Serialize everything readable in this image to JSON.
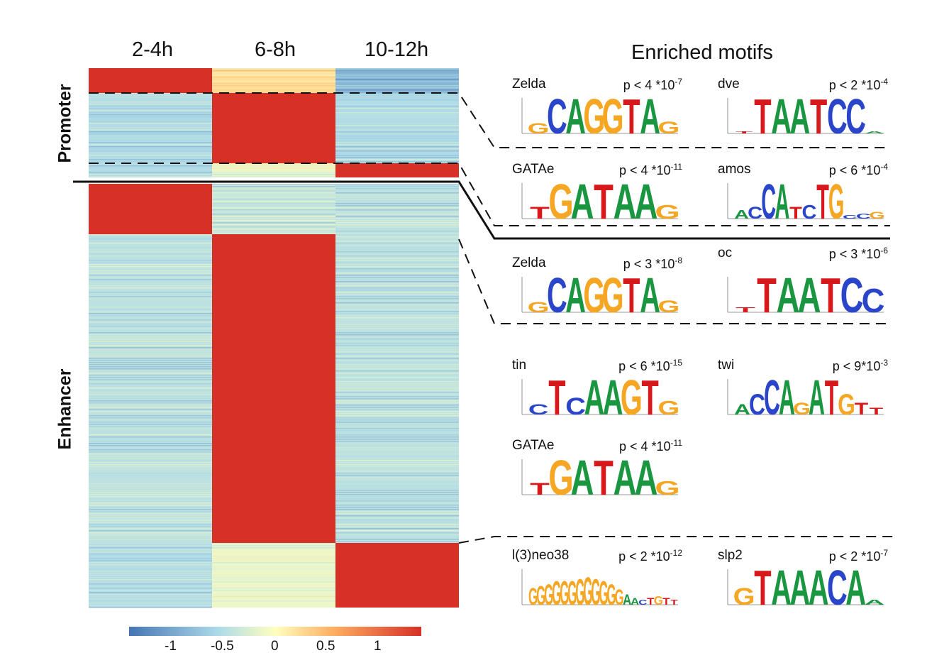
{
  "chart_data": {
    "type": "heatmap",
    "columns": [
      "2-4h",
      "6-8h",
      "10-12h"
    ],
    "row_groups": [
      {
        "label": "Promoter",
        "clusters": [
          {
            "dominant_column": "2-4h",
            "values": [
              1.5,
              0.3,
              -1.0
            ]
          },
          {
            "dominant_column": "6-8h",
            "values": [
              -0.7,
              1.5,
              -0.7
            ]
          },
          {
            "dominant_column": "10-12h",
            "values": [
              -0.7,
              -0.2,
              1.5
            ]
          }
        ]
      },
      {
        "label": "Enhancer",
        "clusters": [
          {
            "dominant_column": "2-4h",
            "values": [
              1.5,
              -0.5,
              -0.6
            ]
          },
          {
            "dominant_column": "6-8h",
            "values": [
              -0.6,
              1.5,
              -0.6
            ]
          },
          {
            "dominant_column": "10-12h",
            "values": [
              -0.7,
              -0.2,
              1.5
            ]
          }
        ]
      }
    ],
    "colorbar": {
      "ticks": [
        "-1",
        "-0.5",
        "0",
        "0.5",
        "1"
      ],
      "range": [
        -1.5,
        1.5
      ],
      "colors": [
        "#4575b4",
        "#abd9e9",
        "#ffffbf",
        "#fdae61",
        "#d73027"
      ]
    }
  },
  "motifs": {
    "title": "Enriched motifs",
    "blocks": [
      {
        "name": "Zelda",
        "p_base": "p < 4 *10",
        "p_exp": "-7",
        "logo": [
          [
            "G",
            "#f5a623",
            0.3
          ],
          [
            "C",
            "#2a45c9",
            1
          ],
          [
            "A",
            "#1a9641",
            1
          ],
          [
            "G",
            "#f5a623",
            1
          ],
          [
            "G",
            "#f5a623",
            1
          ],
          [
            "T",
            "#d7191c",
            1
          ],
          [
            "A",
            "#1a9641",
            1
          ],
          [
            "G",
            "#f5a623",
            0.35
          ]
        ]
      },
      {
        "name": "dve",
        "p_base": "p < 2 *10",
        "p_exp": "-4",
        "logo": [
          [
            "T",
            "#d7191c",
            0.05
          ],
          [
            "T",
            "#d7191c",
            1
          ],
          [
            "A",
            "#1a9641",
            1
          ],
          [
            "A",
            "#1a9641",
            1
          ],
          [
            "T",
            "#d7191c",
            1
          ],
          [
            "C",
            "#2a45c9",
            1
          ],
          [
            "C",
            "#2a45c9",
            1
          ],
          [
            "A",
            "#1a9641",
            0.05
          ]
        ]
      },
      {
        "name": "GATAe",
        "p_base": "p < 4 *10",
        "p_exp": "-11",
        "logo": [
          [
            "T",
            "#d7191c",
            0.35
          ],
          [
            "G",
            "#f5a623",
            1
          ],
          [
            "A",
            "#1a9641",
            1
          ],
          [
            "T",
            "#d7191c",
            1
          ],
          [
            "A",
            "#1a9641",
            1
          ],
          [
            "A",
            "#1a9641",
            1
          ],
          [
            "G",
            "#f5a623",
            0.4
          ]
        ]
      },
      {
        "name": "amos",
        "p_base": "p < 6 *10",
        "p_exp": "-4",
        "logo": [
          [
            "A",
            "#1a9641",
            0.25
          ],
          [
            "C",
            "#2a45c9",
            0.35
          ],
          [
            "C",
            "#2a45c9",
            1
          ],
          [
            "A",
            "#1a9641",
            1
          ],
          [
            "T",
            "#d7191c",
            0.35
          ],
          [
            "C",
            "#2a45c9",
            0.4
          ],
          [
            "T",
            "#d7191c",
            1
          ],
          [
            "G",
            "#f5a623",
            1
          ],
          [
            "C",
            "#2a45c9",
            0.1
          ],
          [
            "C",
            "#2a45c9",
            0.15
          ],
          [
            "G",
            "#f5a623",
            0.2
          ]
        ]
      },
      {
        "name": "Zelda",
        "p_base": "p < 3 *10",
        "p_exp": "-8",
        "logo": [
          [
            "G",
            "#f5a623",
            0.3
          ],
          [
            "C",
            "#2a45c9",
            1
          ],
          [
            "A",
            "#1a9641",
            1
          ],
          [
            "G",
            "#f5a623",
            1
          ],
          [
            "G",
            "#f5a623",
            1
          ],
          [
            "T",
            "#d7191c",
            1
          ],
          [
            "A",
            "#1a9641",
            1
          ],
          [
            "G",
            "#f5a623",
            0.35
          ]
        ]
      },
      {
        "name": "oc",
        "p_base": "p < 3 *10",
        "p_exp": "-6",
        "logo": [
          [
            "T",
            "#d7191c",
            0.15
          ],
          [
            "T",
            "#d7191c",
            1
          ],
          [
            "A",
            "#1a9641",
            1
          ],
          [
            "A",
            "#1a9641",
            1
          ],
          [
            "T",
            "#d7191c",
            1
          ],
          [
            "C",
            "#2a45c9",
            1
          ],
          [
            "C",
            "#2a45c9",
            0.7
          ]
        ]
      },
      {
        "name": "tin",
        "p_base": "p < 6 *10",
        "p_exp": "-15",
        "logo": [
          [
            "C",
            "#2a45c9",
            0.3
          ],
          [
            "T",
            "#d7191c",
            1
          ],
          [
            "C",
            "#2a45c9",
            0.5
          ],
          [
            "A",
            "#1a9641",
            1
          ],
          [
            "A",
            "#1a9641",
            1
          ],
          [
            "G",
            "#f5a623",
            1
          ],
          [
            "T",
            "#d7191c",
            1
          ],
          [
            "G",
            "#f5a623",
            0.4
          ]
        ]
      },
      {
        "name": "twi",
        "p_base": "p < 9*10",
        "p_exp": "-3",
        "logo": [
          [
            "A",
            "#1a9641",
            0.3
          ],
          [
            "C",
            "#2a45c9",
            0.6
          ],
          [
            "C",
            "#2a45c9",
            1
          ],
          [
            "A",
            "#1a9641",
            1
          ],
          [
            "G",
            "#f5a623",
            0.35
          ],
          [
            "A",
            "#1a9641",
            1
          ],
          [
            "T",
            "#d7191c",
            1
          ],
          [
            "G",
            "#f5a623",
            0.6
          ],
          [
            "T",
            "#d7191c",
            0.35
          ],
          [
            "T",
            "#d7191c",
            0.2
          ]
        ]
      },
      {
        "name": "GATAe",
        "p_base": "p < 4 *10",
        "p_exp": "-11",
        "logo": [
          [
            "T",
            "#d7191c",
            0.35
          ],
          [
            "G",
            "#f5a623",
            1
          ],
          [
            "A",
            "#1a9641",
            1
          ],
          [
            "T",
            "#d7191c",
            1
          ],
          [
            "A",
            "#1a9641",
            1
          ],
          [
            "A",
            "#1a9641",
            1
          ],
          [
            "G",
            "#f5a623",
            0.4
          ]
        ]
      },
      {
        "name": "l(3)neo38",
        "p_base": "p < 2 *10",
        "p_exp": "-12",
        "logo": [
          [
            "G",
            "#f5a623",
            0.5
          ],
          [
            "G",
            "#f5a623",
            0.55
          ],
          [
            "G",
            "#f5a623",
            0.6
          ],
          [
            "G",
            "#f5a623",
            0.7
          ],
          [
            "G",
            "#f5a623",
            0.7
          ],
          [
            "G",
            "#f5a623",
            0.7
          ],
          [
            "G",
            "#f5a623",
            0.75
          ],
          [
            "G",
            "#f5a623",
            0.8
          ],
          [
            "G",
            "#f5a623",
            0.75
          ],
          [
            "G",
            "#f5a623",
            0.7
          ],
          [
            "G",
            "#f5a623",
            0.6
          ],
          [
            "G",
            "#f5a623",
            0.45
          ],
          [
            "A",
            "#1a9641",
            0.3
          ],
          [
            "A",
            "#1a9641",
            0.2
          ],
          [
            "C",
            "#2a45c9",
            0.15
          ],
          [
            "T",
            "#d7191c",
            0.2
          ],
          [
            "G",
            "#f5a623",
            0.25
          ],
          [
            "T",
            "#d7191c",
            0.2
          ],
          [
            "T",
            "#d7191c",
            0.15
          ]
        ]
      },
      {
        "name": "slp2",
        "p_base": "p < 2 *10",
        "p_exp": "-7",
        "logo": [
          [
            "G",
            "#f5a623",
            0.5
          ],
          [
            "T",
            "#d7191c",
            1
          ],
          [
            "A",
            "#1a9641",
            1
          ],
          [
            "A",
            "#1a9641",
            1
          ],
          [
            "A",
            "#1a9641",
            1
          ],
          [
            "C",
            "#2a45c9",
            1
          ],
          [
            "A",
            "#1a9641",
            1
          ],
          [
            "A",
            "#1a9641",
            0.15
          ]
        ]
      }
    ]
  }
}
